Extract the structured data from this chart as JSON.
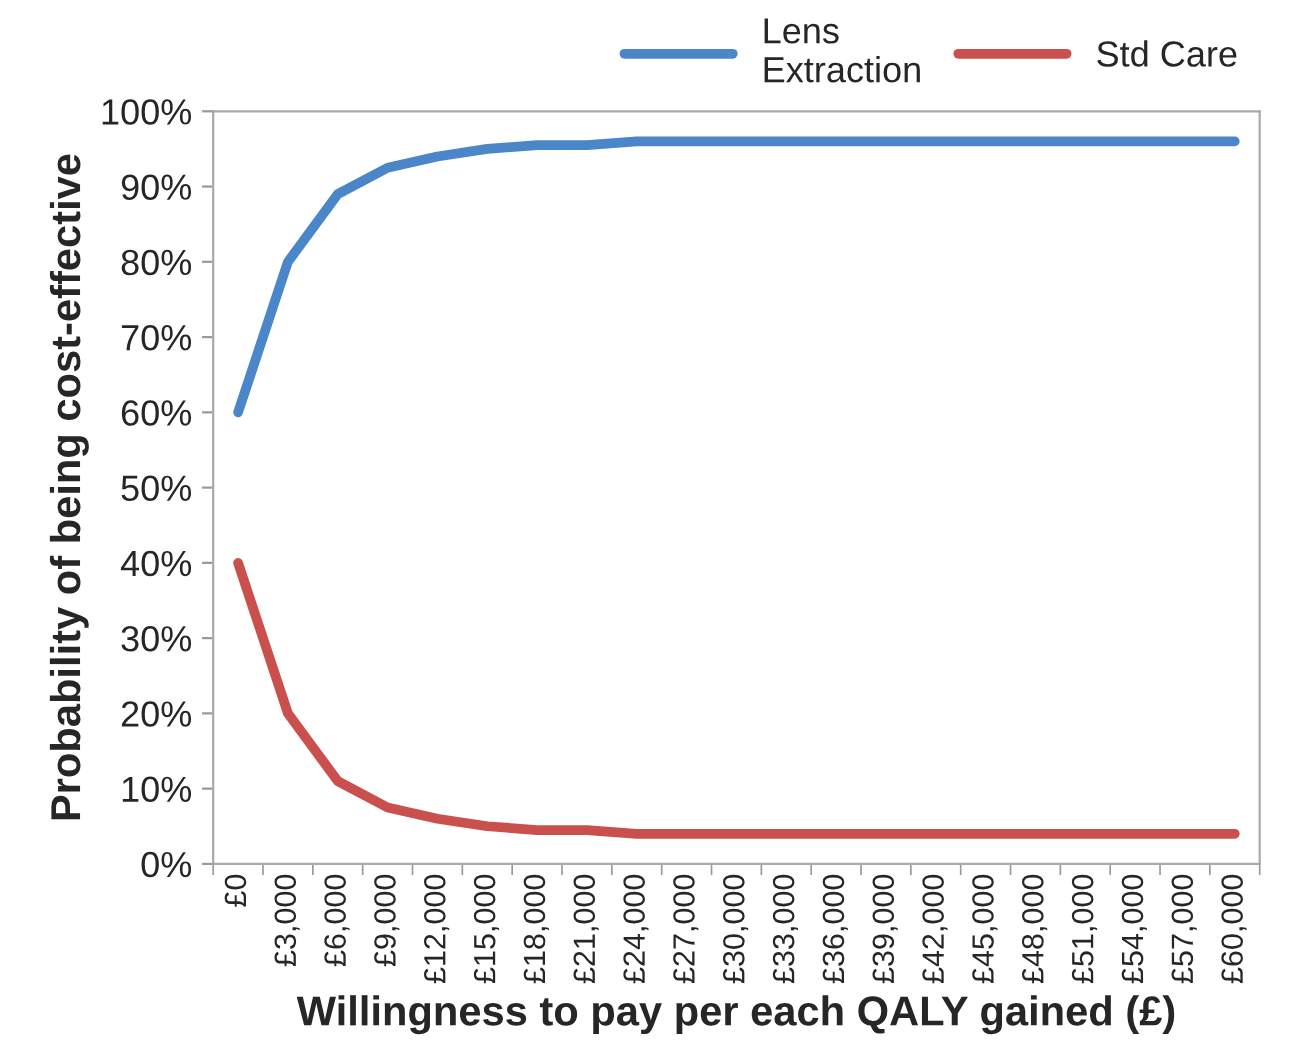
{
  "chart_data": {
    "type": "line",
    "xlabel": "Willingness to pay per each QALY gained (£)",
    "ylabel": "Probability of being cost-effective",
    "categories": [
      "£0",
      "£3,000",
      "£6,000",
      "£9,000",
      "£12,000",
      "£15,000",
      "£18,000",
      "£21,000",
      "£24,000",
      "£27,000",
      "£30,000",
      "£33,000",
      "£36,000",
      "£39,000",
      "£42,000",
      "£45,000",
      "£48,000",
      "£51,000",
      "£54,000",
      "£57,000",
      "£60,000"
    ],
    "series": [
      {
        "name": "Lens\nExtraction",
        "color": "#4a86c8",
        "values": [
          60,
          80,
          89,
          92.5,
          94,
          95,
          95.5,
          95.5,
          96,
          96,
          96,
          96,
          96,
          96,
          96,
          96,
          96,
          96,
          96,
          96,
          96
        ]
      },
      {
        "name": "Std Care",
        "color": "#c9504d",
        "values": [
          40,
          20,
          11,
          7.5,
          6,
          5,
          4.5,
          4.5,
          4,
          4,
          4,
          4,
          4,
          4,
          4,
          4,
          4,
          4,
          4,
          4,
          4
        ]
      }
    ],
    "ylim": [
      0,
      100
    ],
    "yticks": [
      {
        "value": 0,
        "label": "0%"
      },
      {
        "value": 10,
        "label": "10%"
      },
      {
        "value": 20,
        "label": "20%"
      },
      {
        "value": 30,
        "label": "30%"
      },
      {
        "value": 40,
        "label": "40%"
      },
      {
        "value": 50,
        "label": "50%"
      },
      {
        "value": 60,
        "label": "60%"
      },
      {
        "value": 70,
        "label": "70%"
      },
      {
        "value": 80,
        "label": "80%"
      },
      {
        "value": 90,
        "label": "90%"
      },
      {
        "value": 100,
        "label": "100%"
      }
    ],
    "grid": false,
    "legend": "top right",
    "marker": "none",
    "line_style": "solid"
  }
}
